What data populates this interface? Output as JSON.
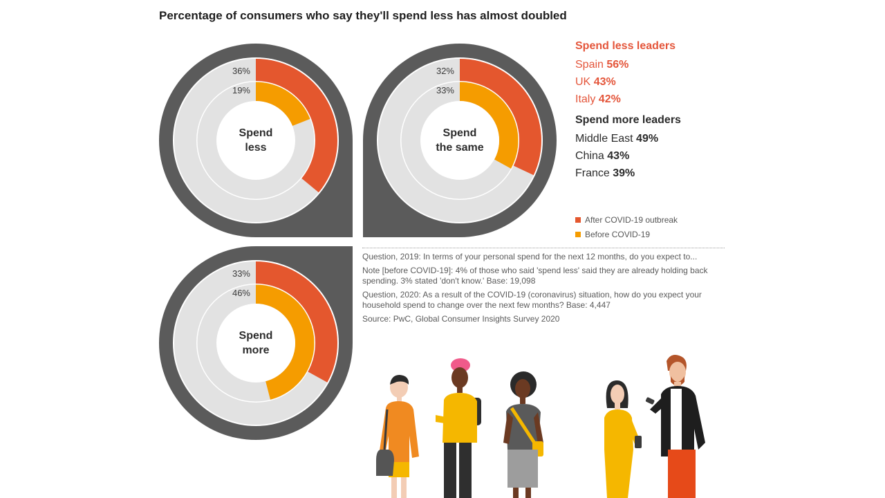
{
  "title": "Percentage of consumers who say they'll spend less has almost doubled",
  "chart_data": [
    {
      "type": "pie",
      "title": "Spend less",
      "center_label": [
        "Spend",
        "less"
      ],
      "series": [
        {
          "name": "After COVID-19 outbreak",
          "value": 36,
          "label": "36%"
        },
        {
          "name": "Before COVID-19",
          "value": 19,
          "label": "19%"
        }
      ]
    },
    {
      "type": "pie",
      "title": "Spend the same",
      "center_label": [
        "Spend",
        "the same"
      ],
      "series": [
        {
          "name": "After COVID-19 outbreak",
          "value": 32,
          "label": "32%"
        },
        {
          "name": "Before COVID-19",
          "value": 33,
          "label": "33%"
        }
      ]
    },
    {
      "type": "pie",
      "title": "Spend more",
      "center_label": [
        "Spend",
        "more"
      ],
      "series": [
        {
          "name": "After COVID-19 outbreak",
          "value": 33,
          "label": "33%"
        },
        {
          "name": "Before COVID-19",
          "value": 46,
          "label": "46%"
        }
      ]
    }
  ],
  "leaders": {
    "less_title": "Spend less leaders",
    "less": [
      {
        "country": "Spain",
        "value": "56%"
      },
      {
        "country": "UK",
        "value": "43%"
      },
      {
        "country": "Italy",
        "value": "42%"
      }
    ],
    "more_title": "Spend more leaders",
    "more": [
      {
        "country": "Middle East",
        "value": "49%"
      },
      {
        "country": "China",
        "value": "43%"
      },
      {
        "country": "France",
        "value": "39%"
      }
    ]
  },
  "legend": {
    "after": "After COVID-19 outbreak",
    "before": "Before COVID-19"
  },
  "notes": {
    "q2019": "Question, 2019: In terms of your personal spend for the next 12 months, do you expect to...",
    "note": "Note [before COVID-19]: 4% of those who said 'spend less' said they are already holding back spending. 3% stated 'don't know.' Base: 19,098",
    "q2020": "Question, 2020: As a result of the COVID-19 (coronavirus) situation, how do you expect your household spend to change over the next few months? Base: 4,447",
    "source": "Source: PwC, Global Consumer Insights Survey 2020"
  },
  "colors": {
    "after": "#e4572e",
    "before": "#f59c00",
    "frame": "#5b5b5b",
    "track": "#e2e2e2",
    "center": "#ffffff"
  }
}
